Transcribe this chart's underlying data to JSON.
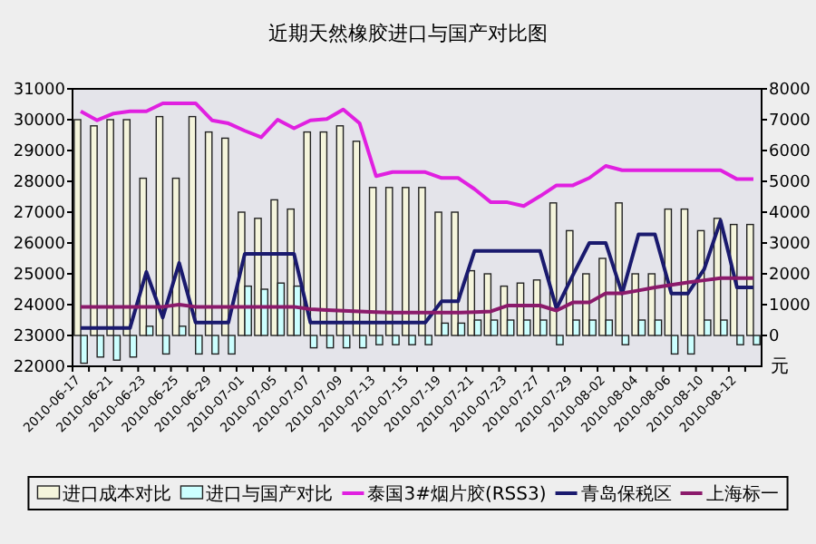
{
  "chart_data": {
    "type": "bar",
    "title": "近期天然橡胶进口与国产对比图",
    "y2label": "元",
    "categories": [
      "2010-06-17",
      null,
      "2010-06-21",
      null,
      "2010-06-23",
      null,
      "2010-06-25",
      null,
      "2010-06-29",
      null,
      "2010-07-01",
      null,
      "2010-07-05",
      null,
      "2010-07-07",
      null,
      "2010-07-09",
      null,
      "2010-07-13",
      null,
      "2010-07-15",
      null,
      "2010-07-19",
      null,
      "2010-07-21",
      null,
      "2010-07-23",
      null,
      "2010-07-27",
      null,
      "2010-07-29",
      null,
      "2010-08-02",
      null,
      "2010-08-04",
      null,
      "2010-08-06",
      null,
      "2010-08-10",
      null,
      "2010-08-12",
      null
    ],
    "ylim": [
      22000,
      31000
    ],
    "yticks": [
      22000,
      23000,
      24000,
      25000,
      26000,
      27000,
      28000,
      29000,
      30000,
      31000
    ],
    "y2lim": [
      -1000,
      8000
    ],
    "y2ticks": [
      0,
      1000,
      2000,
      3000,
      4000,
      5000,
      6000,
      7000,
      8000
    ],
    "legend": "bottom",
    "series": [
      {
        "name": "进口成本对比",
        "axis": "y2",
        "color": "#f5f5dc",
        "values": [
          7000,
          6800,
          7000,
          7000,
          5100,
          7100,
          5100,
          7100,
          6600,
          6400,
          4000,
          3800,
          4400,
          4100,
          6600,
          6600,
          6800,
          6300,
          4800,
          4800,
          4800,
          4800,
          4000,
          4000,
          2100,
          2000,
          1600,
          1700,
          1800,
          4300,
          3400,
          2000,
          2500,
          4300,
          2000,
          2000,
          4100,
          4100,
          3400,
          3800,
          3600,
          3600
        ]
      },
      {
        "name": "进口与国产对比",
        "axis": "y2",
        "color": "#ccffff",
        "values": [
          -900,
          -700,
          -800,
          -700,
          300,
          -600,
          300,
          -600,
          -600,
          -600,
          1600,
          1500,
          1700,
          1600,
          -400,
          -400,
          -400,
          -400,
          -300,
          -300,
          -300,
          -300,
          400,
          400,
          500,
          500,
          500,
          500,
          500,
          -300,
          500,
          500,
          500,
          -300,
          500,
          500,
          -600,
          -600,
          500,
          500,
          -300,
          -300
        ]
      },
      {
        "name": "泰国3#烟片胶(RSS3)",
        "type": "line",
        "color": "#e020e0",
        "values": [
          30270,
          29980,
          30200,
          30270,
          30270,
          30530,
          30530,
          30530,
          29980,
          29880,
          29640,
          29430,
          30000,
          29720,
          29980,
          30020,
          30330,
          29880,
          28170,
          28300,
          28300,
          28300,
          28110,
          28110,
          27750,
          27320,
          27320,
          27200,
          27520,
          27870,
          27870,
          28110,
          28500,
          28360,
          28360,
          28360,
          28360,
          28360,
          28360,
          28360,
          28070,
          28070
        ]
      },
      {
        "name": "青岛保税区",
        "type": "line",
        "color": "#1a1a6e",
        "values": [
          23240,
          23240,
          23240,
          23240,
          25060,
          23580,
          25350,
          23420,
          23420,
          23420,
          25650,
          25650,
          25650,
          25650,
          23420,
          23420,
          23420,
          23420,
          23420,
          23420,
          23420,
          23420,
          24110,
          24110,
          25740,
          25740,
          25740,
          25740,
          25740,
          23870,
          24960,
          26000,
          26000,
          24360,
          26280,
          26280,
          24360,
          24360,
          25150,
          26730,
          24560,
          24560
        ]
      },
      {
        "name": "上海标一",
        "type": "line",
        "color": "#8b1a6b",
        "values": [
          23930,
          23930,
          23930,
          23930,
          23930,
          23930,
          24000,
          23930,
          23930,
          23930,
          23930,
          23930,
          23930,
          23930,
          23850,
          23820,
          23800,
          23780,
          23760,
          23740,
          23740,
          23740,
          23740,
          23740,
          23760,
          23780,
          23970,
          23970,
          23970,
          23810,
          24070,
          24070,
          24370,
          24370,
          24460,
          24560,
          24640,
          24720,
          24790,
          24860,
          24860,
          24860
        ]
      }
    ]
  }
}
